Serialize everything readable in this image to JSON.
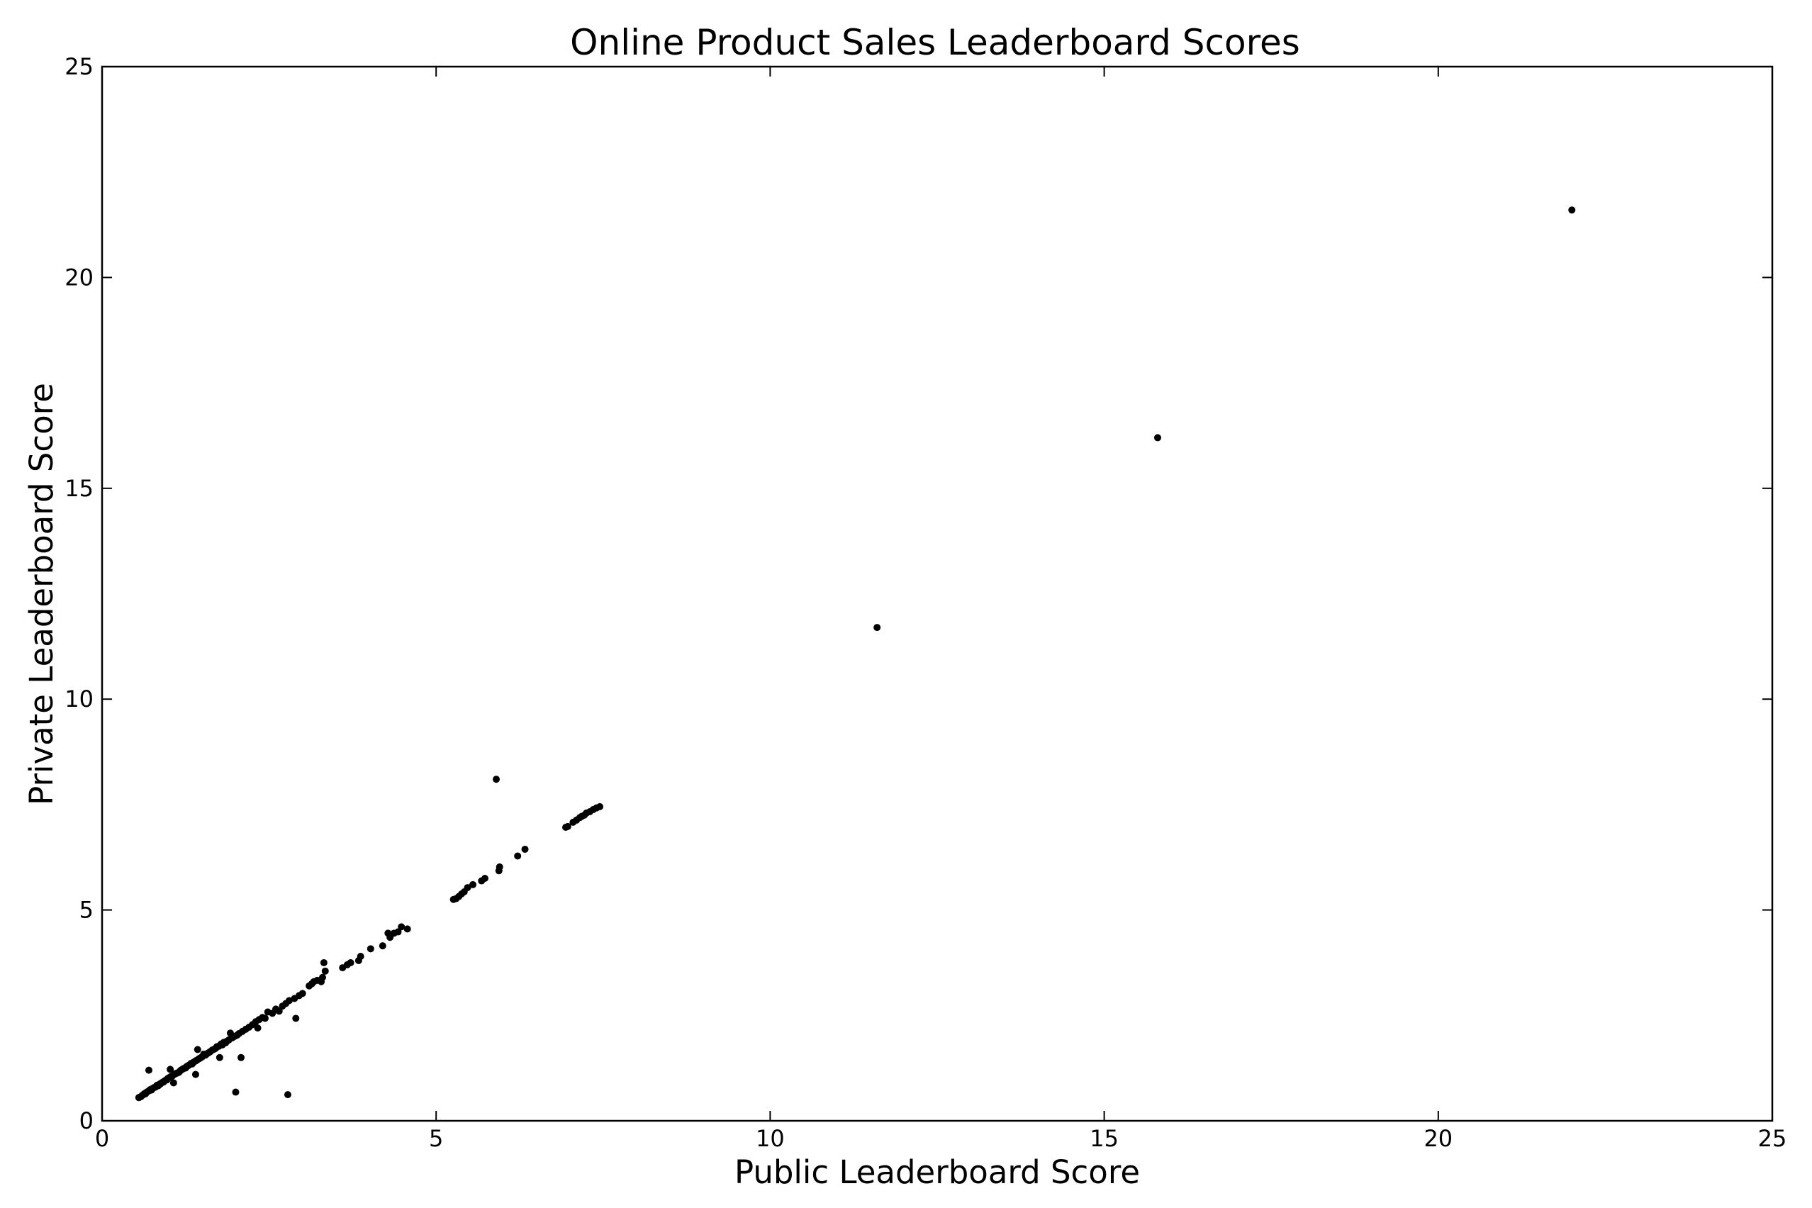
{
  "chart_data": {
    "type": "scatter",
    "title": "Online Product Sales Leaderboard Scores",
    "xlabel": "Public Leaderboard Score",
    "ylabel": "Private Leaderboard Score",
    "xlim": [
      0,
      25
    ],
    "ylim": [
      0,
      25
    ],
    "xticks": [
      "0",
      "5",
      "10",
      "15",
      "20",
      "25"
    ],
    "yticks": [
      "0",
      "5",
      "10",
      "15",
      "20",
      "25"
    ],
    "grid": false,
    "marker_color": "#000000",
    "points": [
      [
        22.0,
        21.6
      ],
      [
        15.8,
        16.2
      ],
      [
        11.6,
        11.7
      ],
      [
        5.9,
        8.1
      ],
      [
        7.45,
        7.45
      ],
      [
        7.4,
        7.42
      ],
      [
        7.35,
        7.38
      ],
      [
        7.3,
        7.33
      ],
      [
        7.25,
        7.3
      ],
      [
        7.22,
        7.25
      ],
      [
        7.18,
        7.22
      ],
      [
        7.15,
        7.19
      ],
      [
        7.1,
        7.13
      ],
      [
        7.05,
        7.08
      ],
      [
        6.97,
        6.98
      ],
      [
        6.94,
        6.96
      ],
      [
        6.33,
        6.44
      ],
      [
        6.22,
        6.28
      ],
      [
        5.95,
        6.02
      ],
      [
        5.94,
        5.93
      ],
      [
        5.73,
        5.75
      ],
      [
        5.68,
        5.69
      ],
      [
        5.55,
        5.6
      ],
      [
        5.47,
        5.53
      ],
      [
        5.42,
        5.43
      ],
      [
        5.38,
        5.38
      ],
      [
        5.34,
        5.32
      ],
      [
        5.3,
        5.27
      ],
      [
        5.26,
        5.25
      ],
      [
        4.57,
        4.55
      ],
      [
        4.48,
        4.6
      ],
      [
        4.43,
        4.48
      ],
      [
        4.37,
        4.45
      ],
      [
        4.31,
        4.35
      ],
      [
        4.28,
        4.45
      ],
      [
        4.2,
        4.15
      ],
      [
        4.02,
        4.08
      ],
      [
        3.87,
        3.9
      ],
      [
        3.84,
        3.8
      ],
      [
        3.72,
        3.75
      ],
      [
        3.67,
        3.7
      ],
      [
        3.6,
        3.63
      ],
      [
        3.34,
        3.55
      ],
      [
        3.32,
        3.75
      ],
      [
        3.3,
        3.4
      ],
      [
        3.28,
        3.3
      ],
      [
        3.22,
        3.33
      ],
      [
        3.17,
        3.3
      ],
      [
        3.14,
        3.25
      ],
      [
        3.1,
        3.2
      ],
      [
        3.0,
        3.02
      ],
      [
        2.95,
        2.97
      ],
      [
        2.88,
        2.9
      ],
      [
        2.9,
        2.43
      ],
      [
        2.8,
        2.85
      ],
      [
        2.78,
        0.62
      ],
      [
        2.75,
        2.78
      ],
      [
        2.7,
        2.72
      ],
      [
        2.65,
        2.6
      ],
      [
        2.6,
        2.65
      ],
      [
        2.55,
        2.55
      ],
      [
        2.48,
        2.58
      ],
      [
        2.44,
        2.43
      ],
      [
        2.4,
        2.45
      ],
      [
        2.35,
        2.4
      ],
      [
        2.33,
        2.2
      ],
      [
        2.3,
        2.35
      ],
      [
        2.25,
        2.28
      ],
      [
        2.2,
        2.22
      ],
      [
        2.15,
        2.17
      ],
      [
        2.1,
        2.12
      ],
      [
        2.08,
        1.5
      ],
      [
        2.05,
        2.07
      ],
      [
        2.02,
        2.03
      ],
      [
        2.0,
        0.68
      ],
      [
        1.98,
        2.0
      ],
      [
        1.95,
        1.97
      ],
      [
        1.92,
        2.08
      ],
      [
        1.9,
        1.92
      ],
      [
        1.87,
        1.89
      ],
      [
        1.85,
        1.85
      ],
      [
        1.82,
        1.86
      ],
      [
        1.8,
        1.8
      ],
      [
        1.78,
        1.82
      ],
      [
        1.76,
        1.5
      ],
      [
        1.75,
        1.77
      ],
      [
        1.72,
        1.76
      ],
      [
        1.7,
        1.72
      ],
      [
        1.68,
        1.7
      ],
      [
        1.65,
        1.68
      ],
      [
        1.62,
        1.64
      ],
      [
        1.6,
        1.62
      ],
      [
        1.58,
        1.6
      ],
      [
        1.55,
        1.56
      ],
      [
        1.52,
        1.58
      ],
      [
        1.5,
        1.52
      ],
      [
        1.48,
        1.5
      ],
      [
        1.46,
        1.48
      ],
      [
        1.45,
        1.47
      ],
      [
        1.43,
        1.69
      ],
      [
        1.42,
        1.44
      ],
      [
        1.4,
        1.42
      ],
      [
        1.4,
        1.1
      ],
      [
        1.38,
        1.4
      ],
      [
        1.36,
        1.38
      ],
      [
        1.35,
        1.35
      ],
      [
        1.33,
        1.36
      ],
      [
        1.3,
        1.32
      ],
      [
        1.28,
        1.3
      ],
      [
        1.26,
        1.28
      ],
      [
        1.25,
        1.25
      ],
      [
        1.22,
        1.24
      ],
      [
        1.2,
        1.22
      ],
      [
        1.18,
        1.2
      ],
      [
        1.16,
        1.17
      ],
      [
        1.15,
        1.15
      ],
      [
        1.12,
        1.13
      ],
      [
        1.1,
        1.12
      ],
      [
        1.08,
        1.1
      ],
      [
        1.07,
        0.9
      ],
      [
        1.05,
        1.06
      ],
      [
        1.03,
        1.05
      ],
      [
        1.02,
        1.22
      ],
      [
        1.0,
        1.02
      ],
      [
        0.98,
        1.0
      ],
      [
        0.97,
        0.97
      ],
      [
        0.95,
        0.96
      ],
      [
        0.93,
        0.94
      ],
      [
        0.92,
        0.92
      ],
      [
        0.9,
        0.91
      ],
      [
        0.88,
        0.89
      ],
      [
        0.87,
        0.87
      ],
      [
        0.85,
        0.86
      ],
      [
        0.84,
        0.83
      ],
      [
        0.82,
        0.84
      ],
      [
        0.8,
        0.8
      ],
      [
        0.78,
        0.79
      ],
      [
        0.77,
        0.78
      ],
      [
        0.75,
        0.76
      ],
      [
        0.74,
        0.73
      ],
      [
        0.72,
        0.74
      ],
      [
        0.7,
        1.2
      ],
      [
        0.7,
        0.71
      ],
      [
        0.68,
        0.69
      ],
      [
        0.66,
        0.67
      ],
      [
        0.65,
        0.64
      ],
      [
        0.63,
        0.64
      ],
      [
        0.62,
        0.62
      ],
      [
        0.6,
        0.6
      ],
      [
        0.58,
        0.57
      ],
      [
        0.56,
        0.56
      ],
      [
        0.55,
        0.55
      ]
    ]
  }
}
